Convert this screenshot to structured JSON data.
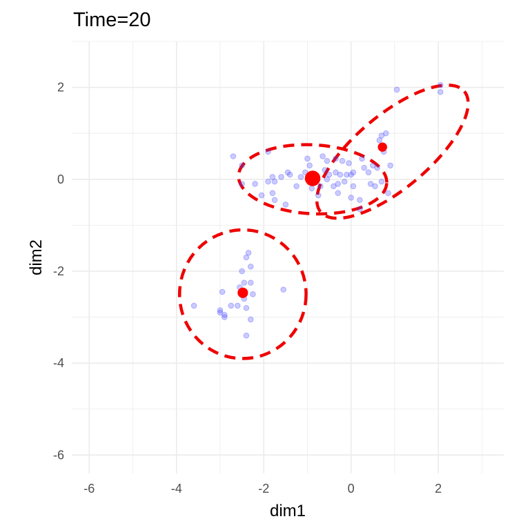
{
  "chart_data": {
    "type": "scatter",
    "title": "Time=20",
    "xlabel": "dim1",
    "ylabel": "dim2",
    "xlim": [
      -6.4,
      3.5
    ],
    "ylim": [
      -6.4,
      3.0
    ],
    "xticks": [
      -6,
      -4,
      -2,
      0,
      2
    ],
    "yticks": [
      -6,
      -4,
      -2,
      0,
      2
    ],
    "grid": true,
    "colors": {
      "points": "#4444ff",
      "centers": "#ff0000",
      "ellipses": "#ee0000",
      "grid": "#ebebeb"
    },
    "points": [
      [
        -2.7,
        0.5
      ],
      [
        -1.9,
        0.6
      ],
      [
        -2.5,
        0.3
      ],
      [
        -2.5,
        -0.1
      ],
      [
        -2.2,
        -0.1
      ],
      [
        -2.05,
        -0.35
      ],
      [
        -1.9,
        -0.05
      ],
      [
        -1.8,
        0.05
      ],
      [
        -1.75,
        -0.05
      ],
      [
        -1.8,
        -0.3
      ],
      [
        -1.75,
        -0.45
      ],
      [
        -1.6,
        0.05
      ],
      [
        -1.4,
        0.1
      ],
      [
        -1.45,
        0.15
      ],
      [
        -1.5,
        -0.55
      ],
      [
        -1.25,
        -0.15
      ],
      [
        -1.15,
        0.05
      ],
      [
        -1.05,
        0.15
      ],
      [
        -0.95,
        0.3
      ],
      [
        -0.85,
        0.1
      ],
      [
        -0.9,
        -0.2
      ],
      [
        -0.75,
        -0.35
      ],
      [
        -0.7,
        -0.15
      ],
      [
        -0.65,
        0.5
      ],
      [
        -0.6,
        0.2
      ],
      [
        -0.5,
        0.1
      ],
      [
        -0.55,
        0.4
      ],
      [
        -0.4,
        -0.15
      ],
      [
        -0.35,
        0.15
      ],
      [
        -0.3,
        -0.3
      ],
      [
        -0.35,
        0.45
      ],
      [
        -0.25,
        0.1
      ],
      [
        -0.2,
        0.4
      ],
      [
        -0.15,
        -0.05
      ],
      [
        -0.1,
        0.1
      ],
      [
        -0.05,
        0.35
      ],
      [
        0.0,
        0.1
      ],
      [
        0.05,
        0.15
      ],
      [
        0.0,
        -0.4
      ],
      [
        0.05,
        -0.15
      ],
      [
        0.25,
        0.45
      ],
      [
        0.3,
        0.25
      ],
      [
        0.2,
        -0.45
      ],
      [
        0.2,
        -0.65
      ],
      [
        0.4,
        0.15
      ],
      [
        0.45,
        -0.1
      ],
      [
        0.5,
        0.3
      ],
      [
        0.55,
        -0.15
      ],
      [
        0.6,
        0.25
      ],
      [
        0.65,
        0.85
      ],
      [
        0.7,
        -0.05
      ],
      [
        0.7,
        0.95
      ],
      [
        0.75,
        0.6
      ],
      [
        0.8,
        1.0
      ],
      [
        0.85,
        -0.3
      ],
      [
        0.9,
        0.3
      ],
      [
        1.05,
        1.95
      ],
      [
        2.05,
        2.05
      ],
      [
        2.05,
        1.9
      ],
      [
        -0.55,
        0.0
      ],
      [
        -1.0,
        0.45
      ],
      [
        -0.3,
        -0.1
      ],
      [
        -2.45,
        -2.25
      ],
      [
        -2.35,
        -1.6
      ],
      [
        -2.4,
        -1.7
      ],
      [
        -2.3,
        -1.9
      ],
      [
        -2.5,
        -2.0
      ],
      [
        -2.3,
        -2.25
      ],
      [
        -2.55,
        -2.35
      ],
      [
        -2.25,
        -2.5
      ],
      [
        -2.45,
        -2.6
      ],
      [
        -2.6,
        -2.75
      ],
      [
        -2.75,
        -2.75
      ],
      [
        -2.4,
        -2.8
      ],
      [
        -2.95,
        -2.45
      ],
      [
        -3.0,
        -2.85
      ],
      [
        -3.0,
        -2.9
      ],
      [
        -2.9,
        -2.95
      ],
      [
        -2.9,
        -3.0
      ],
      [
        -2.3,
        -3.05
      ],
      [
        -3.6,
        -2.75
      ],
      [
        -1.55,
        -2.4
      ],
      [
        -2.4,
        -3.4
      ]
    ],
    "centers": [
      {
        "x": -0.88,
        "y": 0.02,
        "weight": 3.0
      },
      {
        "x": 0.72,
        "y": 0.7,
        "weight": 1.0
      },
      {
        "x": -2.48,
        "y": -2.47,
        "weight": 1.3
      }
    ],
    "ellipses": [
      {
        "cx": -0.88,
        "cy": 0.0,
        "rx": 1.7,
        "ry": 0.75,
        "angle_deg": -3
      },
      {
        "cx": 0.95,
        "cy": 0.6,
        "rx": 2.15,
        "ry": 0.8,
        "angle_deg": 40
      },
      {
        "cx": -2.48,
        "cy": -2.5,
        "rx": 1.45,
        "ry": 1.4,
        "angle_deg": 0
      }
    ]
  }
}
